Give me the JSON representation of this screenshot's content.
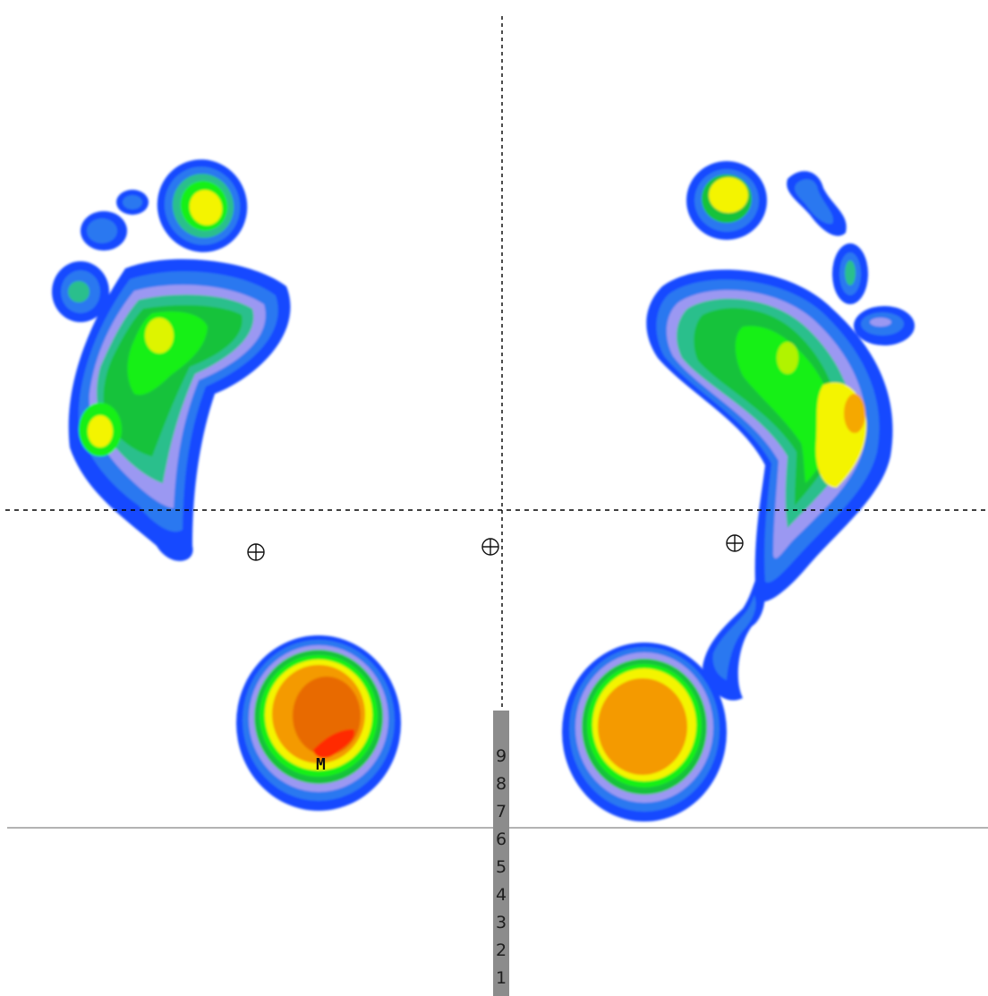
{
  "marker_label": "M",
  "scale": {
    "digits": [
      "9",
      "8",
      "7",
      "6",
      "5",
      "4",
      "3",
      "2",
      "1"
    ]
  },
  "palette": {
    "background": "#ffffff",
    "blue_dark": "#1648ff",
    "blue": "#2a78f0",
    "lavender": "#9b98f2",
    "teal": "#2bbf8c",
    "green": "#16c23a",
    "bright_green": "#16f016",
    "yellow": "#f4f400",
    "orange": "#f49a00",
    "dark_orange": "#e86a00",
    "red": "#ff2a00",
    "guide_line": "#000000",
    "baseline": "#9a9a9a",
    "scale_bar": "#8c8c8c"
  },
  "markers": {
    "center_of_gravity": "crosshair-circle-icon",
    "count": 3
  }
}
